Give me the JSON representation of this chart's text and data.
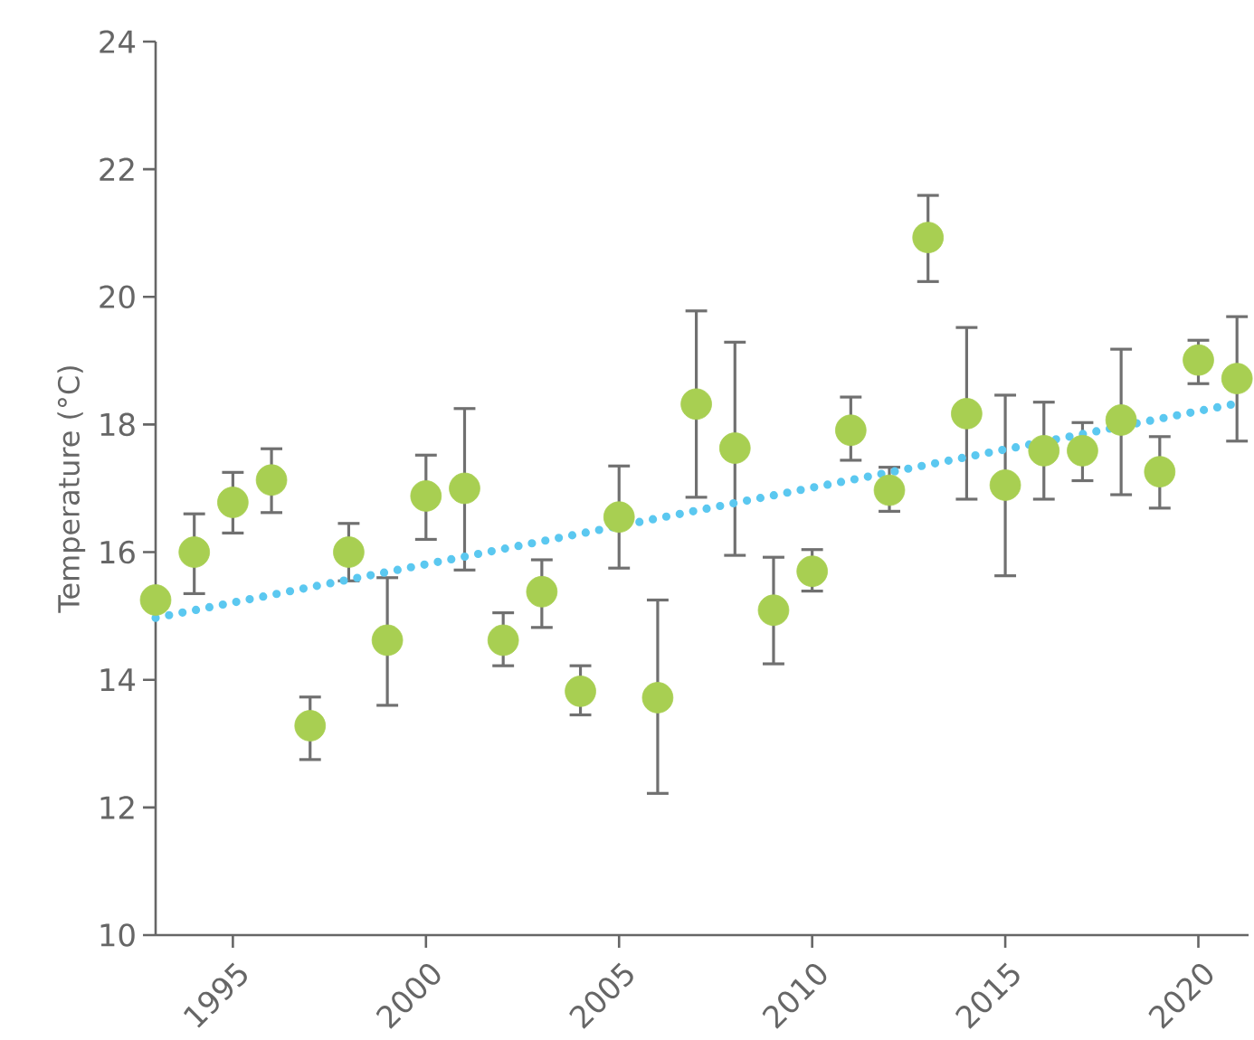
{
  "chart_data": {
    "type": "scatter",
    "ylabel": "Temperature (°C)",
    "xlim": [
      1993,
      2021.3
    ],
    "xticks": [
      1995,
      2000,
      2005,
      2010,
      2015,
      2020
    ],
    "ylim": [
      10,
      24
    ],
    "yticks": [
      10,
      12,
      14,
      16,
      18,
      20,
      22,
      24
    ],
    "series": [
      {
        "color": "#a8cf52",
        "marker": "circle",
        "x": [
          1993,
          1994,
          1995,
          1996,
          1997,
          1998,
          1999,
          2000,
          2001,
          2002,
          2003,
          2004,
          2005,
          2006,
          2007,
          2008,
          2009,
          2010,
          2011,
          2012,
          2013,
          2014,
          2015,
          2016,
          2017,
          2018,
          2019,
          2020,
          2021
        ],
        "values": [
          15.25,
          16.0,
          16.78,
          17.13,
          13.28,
          16.0,
          14.62,
          16.88,
          17.0,
          14.62,
          15.38,
          13.82,
          16.55,
          13.72,
          18.32,
          17.63,
          15.09,
          15.7,
          17.91,
          16.97,
          20.93,
          18.17,
          17.05,
          17.59,
          17.59,
          18.07,
          17.26,
          19.01,
          18.72
        ],
        "errors": [
          null,
          [
            15.35,
            16.6
          ],
          [
            16.3,
            17.25
          ],
          [
            16.62,
            17.62
          ],
          [
            12.75,
            13.73
          ],
          [
            15.55,
            16.45
          ],
          [
            13.6,
            15.6
          ],
          [
            16.2,
            17.52
          ],
          [
            15.72,
            18.25
          ],
          [
            14.22,
            15.05
          ],
          [
            14.82,
            15.88
          ],
          [
            13.45,
            14.22
          ],
          [
            15.75,
            17.35
          ],
          [
            12.22,
            15.25
          ],
          [
            16.86,
            19.78
          ],
          [
            15.95,
            19.29
          ],
          [
            14.25,
            15.92
          ],
          [
            15.39,
            16.04
          ],
          [
            17.44,
            18.43
          ],
          [
            16.64,
            17.33
          ],
          [
            20.24,
            21.59
          ],
          [
            16.83,
            19.52
          ],
          [
            15.63,
            18.46
          ],
          [
            16.83,
            18.35
          ],
          [
            17.12,
            18.03
          ],
          [
            16.9,
            19.18
          ],
          [
            16.69,
            17.81
          ],
          [
            18.64,
            19.32
          ],
          [
            17.74,
            19.69
          ]
        ]
      },
      {
        "type": "line",
        "color": "#5bc8f0",
        "line_style": "dotted",
        "marker": "none",
        "x": [
          1993,
          2021
        ],
        "values": [
          14.97,
          18.33
        ]
      }
    ]
  }
}
